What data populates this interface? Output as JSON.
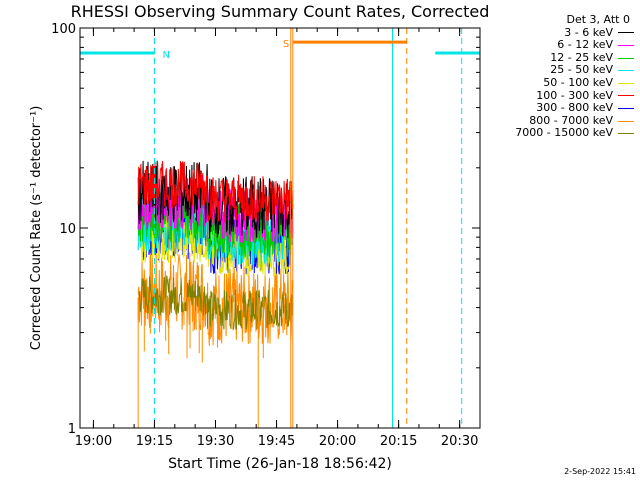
{
  "chart_data": {
    "type": "line",
    "title": "RHESSI Observing Summary Count Rates, Corrected",
    "xlabel": "Start Time (26-Jan-18 18:56:42)",
    "ylabel": "Corrected Count Rate (s⁻¹ detector⁻¹)",
    "yscale": "log",
    "ylim": [
      1,
      100
    ],
    "xlim": [
      "18:56:42",
      "20:35:00"
    ],
    "x_ticks": [
      "19:00",
      "19:15",
      "19:30",
      "19:45",
      "20:00",
      "20:15",
      "20:30"
    ],
    "y_ticks": [
      "1",
      "10",
      "100"
    ],
    "data_window": [
      "19:11:00",
      "19:49:00"
    ],
    "series": [
      {
        "name": "3 - 6 keV",
        "color": "#000000",
        "mean_level": 15,
        "spread": 0.16
      },
      {
        "name": "6 - 12 keV",
        "color": "#ff00ff",
        "mean_level": 13.5,
        "spread": 0.14
      },
      {
        "name": "12 - 25 keV",
        "color": "#00cc00",
        "mean_level": 11.5,
        "spread": 0.14
      },
      {
        "name": "25 - 50 keV",
        "color": "#00e5e5",
        "mean_level": 10.5,
        "spread": 0.14
      },
      {
        "name": "50 - 100 keV",
        "color": "#e5e500",
        "mean_level": 9,
        "spread": 0.13
      },
      {
        "name": "100 - 300 keV",
        "color": "#ff0000",
        "mean_level": 16.5,
        "spread": 0.12
      },
      {
        "name": "300 - 800 keV",
        "color": "#0000ff",
        "mean_level": 9.5,
        "spread": 0.14
      },
      {
        "name": "800 - 7000 keV",
        "color": "#ff8c00",
        "mean_level": 4.8,
        "spread": 0.2
      },
      {
        "name": "7000 - 15000 keV",
        "color": "#808000",
        "mean_level": 4.6,
        "spread": 0.1
      }
    ],
    "flags": [
      {
        "label": "N",
        "color": "#00e5e5",
        "level": 75,
        "segments": [
          [
            "18:56:42",
            "19:15:00"
          ],
          [
            "20:24:00",
            "20:35:00"
          ]
        ]
      },
      {
        "label": "S",
        "color": "#ff8000",
        "level": 85,
        "segments": [
          [
            "19:49:00",
            "20:17:00"
          ]
        ]
      }
    ],
    "vlines": [
      {
        "time": "18:56:42",
        "color": "#00e5e5",
        "style": "solid"
      },
      {
        "time": "19:15:00",
        "color": "#00e5e5",
        "style": "dashed"
      },
      {
        "time": "20:13:30",
        "color": "#00e5e5",
        "style": "solid"
      },
      {
        "time": "20:30:30",
        "color": "#00e5e5",
        "style": "dashed"
      },
      {
        "time": "19:48:30",
        "color": "#ff8000",
        "style": "solid"
      },
      {
        "time": "19:49:00",
        "color": "#ff8000",
        "style": "solid"
      },
      {
        "time": "20:17:00",
        "color": "#ff8000",
        "style": "dashed"
      }
    ],
    "legend": {
      "title": "Det 3, Att 0",
      "placement": "top-right"
    }
  },
  "footer": {
    "timestamp": "2-Sep-2022 15:41"
  }
}
